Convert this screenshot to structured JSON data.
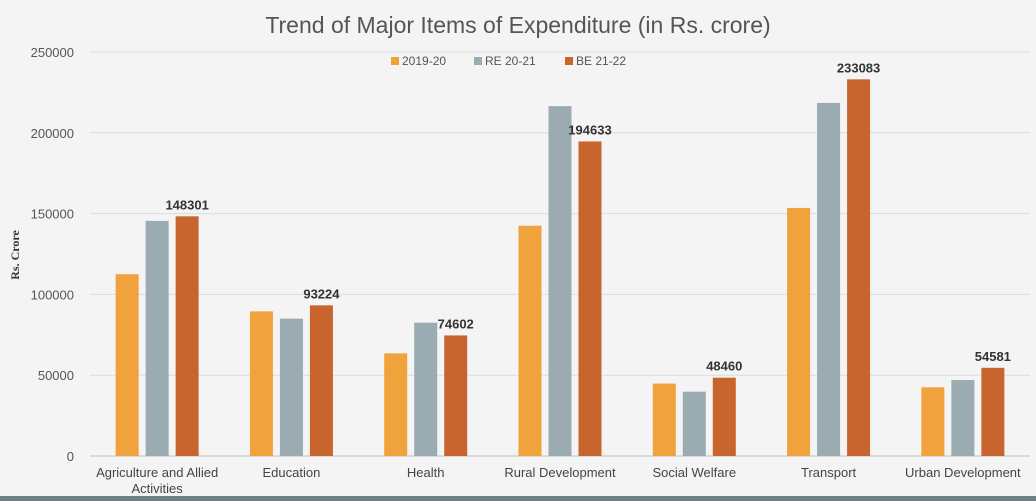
{
  "chart_data": {
    "type": "bar",
    "title": "Trend of Major Items of Expenditure (in Rs. crore)",
    "xlabel": "",
    "ylabel": "Rs. Crore",
    "ylim": [
      0,
      250000
    ],
    "yticks": [
      0,
      50000,
      100000,
      150000,
      200000,
      250000
    ],
    "grid": true,
    "legend_position": "top-center",
    "categories": [
      [
        "Agriculture and Allied",
        "Activities"
      ],
      [
        "Education"
      ],
      [
        "Health"
      ],
      [
        "Rural Development"
      ],
      [
        "Social Welfare"
      ],
      [
        "Transport"
      ],
      [
        "Urban Development"
      ]
    ],
    "series": [
      {
        "name": "2019-20",
        "color": "#f0a23c",
        "values": [
          112500,
          89500,
          63500,
          142500,
          44800,
          153500,
          42500
        ]
      },
      {
        "name": "RE 20-21",
        "color": "#9aabb1",
        "values": [
          145500,
          85000,
          82500,
          216500,
          39800,
          218500,
          47000
        ]
      },
      {
        "name": "BE 21-22",
        "color": "#c8652e",
        "values": [
          148301,
          93224,
          74602,
          194633,
          48460,
          233083,
          54581
        ],
        "data_labels": true
      }
    ]
  }
}
